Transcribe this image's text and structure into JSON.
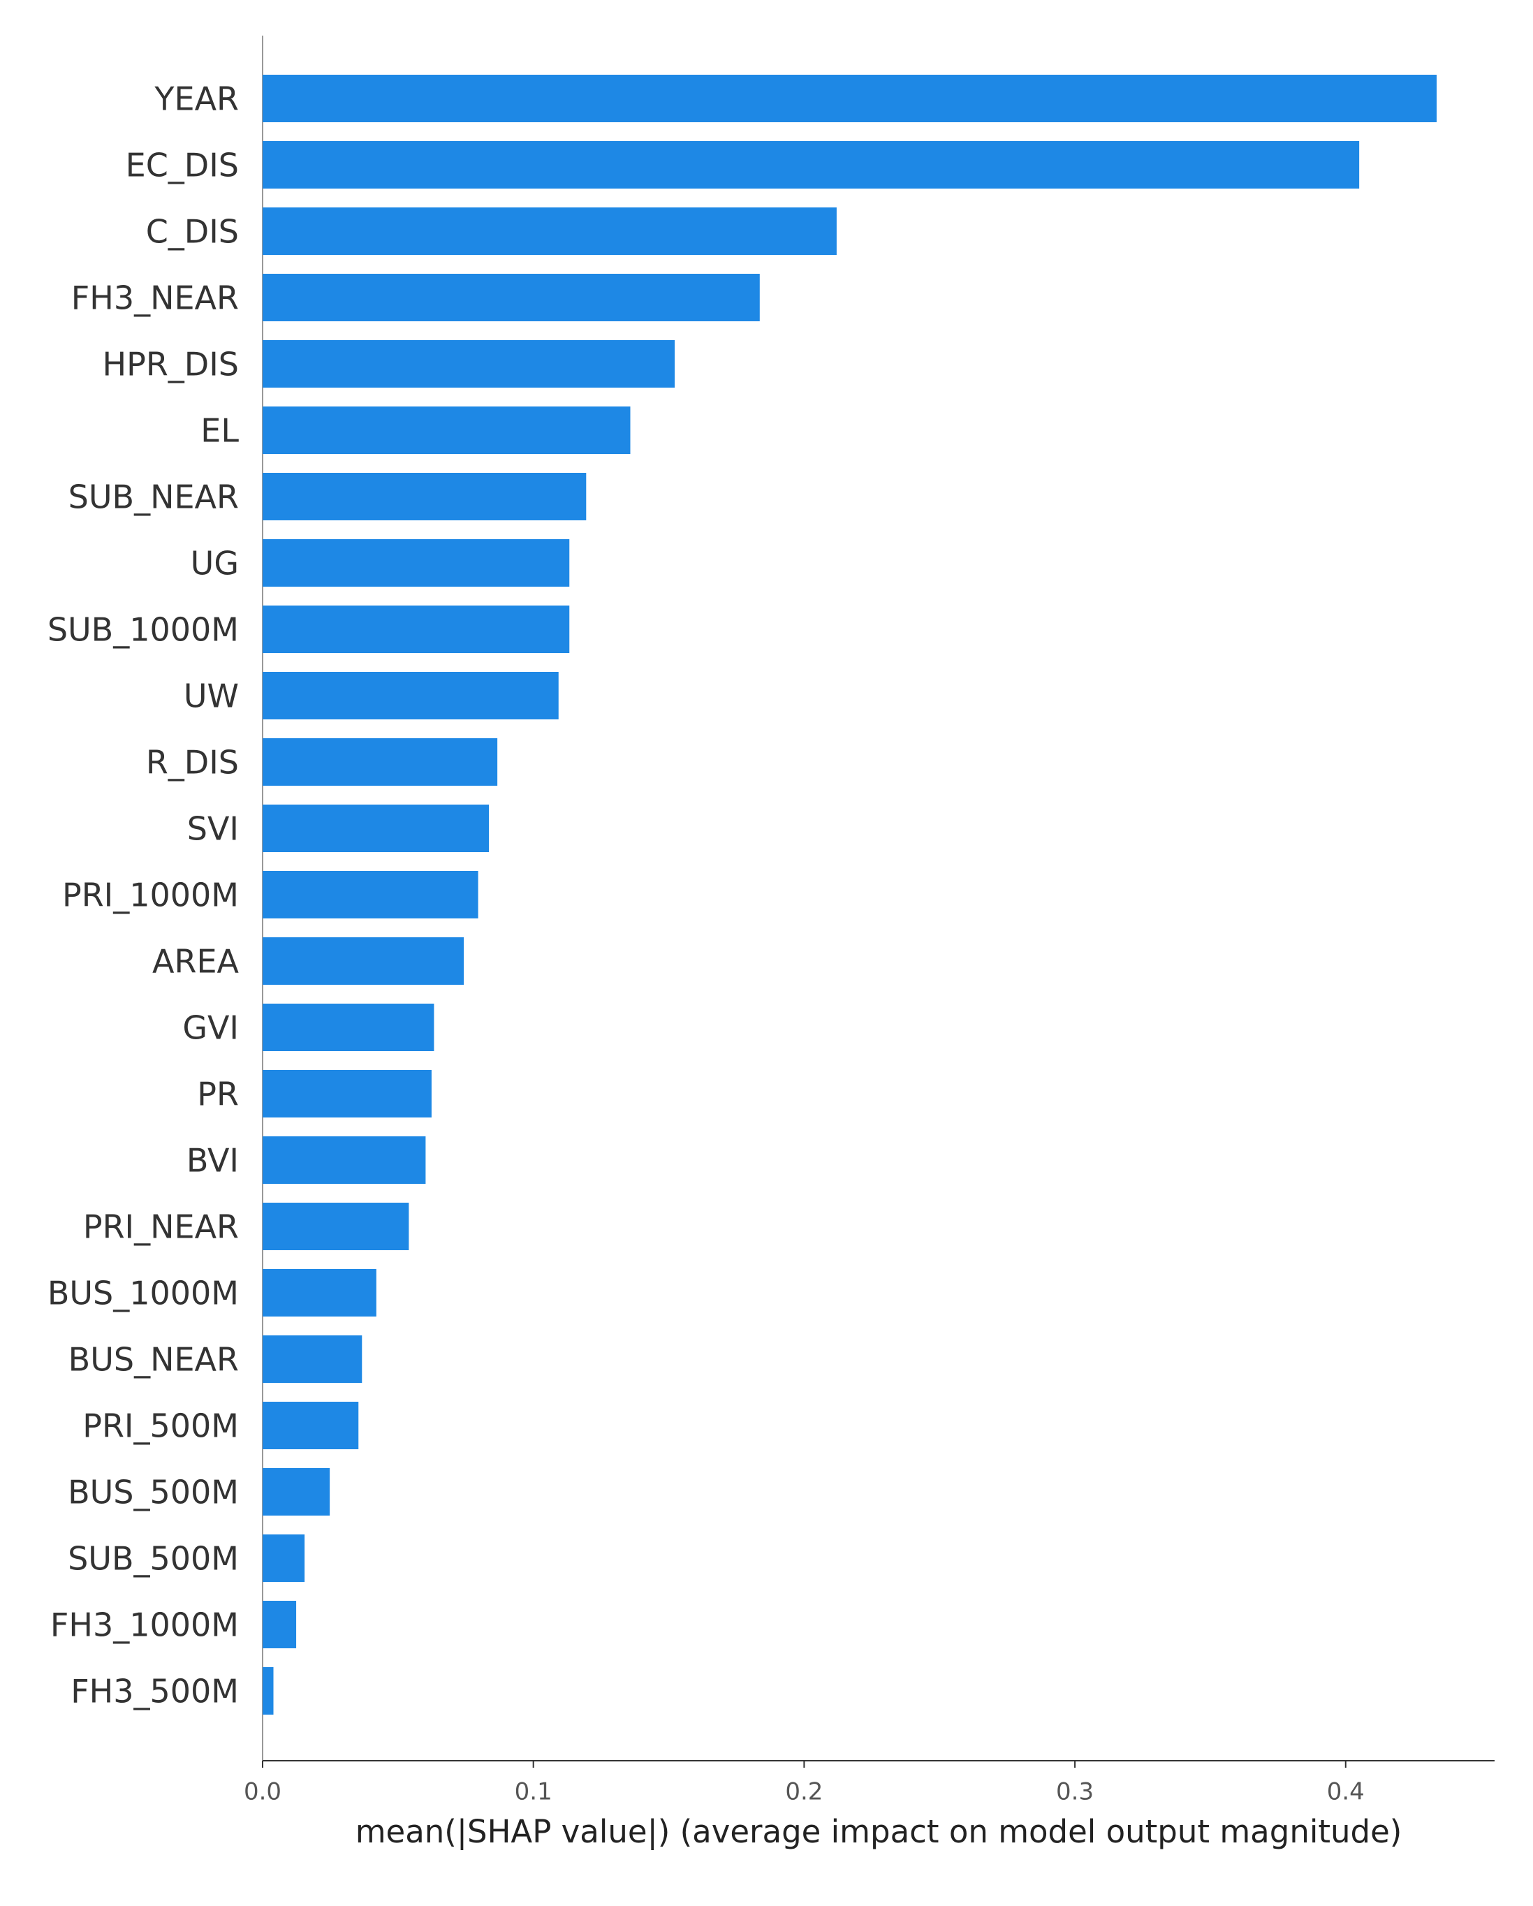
{
  "chart_data": {
    "type": "bar",
    "orientation": "horizontal",
    "xlabel": "mean(|SHAP value|) (average impact on model output magnitude)",
    "categories": [
      "YEAR",
      "EC_DIS",
      "C_DIS",
      "FH3_NEAR",
      "HPR_DIS",
      "EL",
      "SUB_NEAR",
      "UG",
      "SUB_1000M",
      "UW",
      "R_DIS",
      "SVI",
      "PRI_1000M",
      "AREA",
      "GVI",
      "PR",
      "BVI",
      "PRI_NEAR",
      "BUS_1000M",
      "BUS_NEAR",
      "PRI_500M",
      "BUS_500M",
      "SUB_500M",
      "FH3_1000M",
      "FH3_500M"
    ],
    "values": [
      0.4336,
      0.405,
      0.212,
      0.1836,
      0.1522,
      0.1358,
      0.1195,
      0.1133,
      0.1133,
      0.1093,
      0.0867,
      0.0836,
      0.0796,
      0.0743,
      0.0633,
      0.0624,
      0.0602,
      0.054,
      0.042,
      0.0367,
      0.0354,
      0.0248,
      0.0155,
      0.0124,
      0.004
    ],
    "color": "#1e88e5",
    "xlim": [
      0,
      0.455
    ],
    "xticks": [
      {
        "value": 0,
        "label": "0.0"
      },
      0.1,
      0.2,
      0.3,
      0.4
    ]
  }
}
